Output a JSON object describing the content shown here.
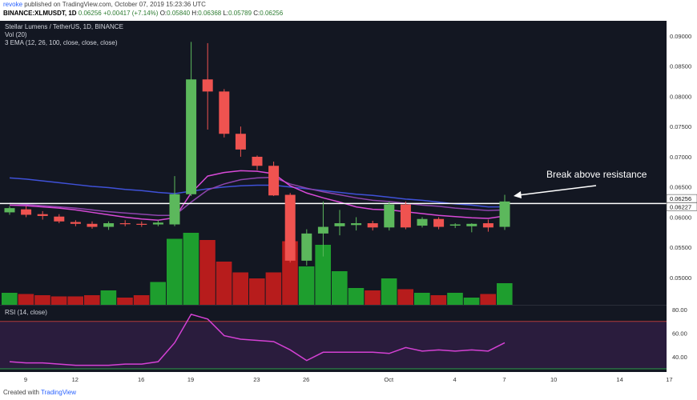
{
  "header": {
    "author": "revoke",
    "published_text": "published on TradingView.com, October 07, 2019 15:23:36 UTC",
    "symbol": "BINANCE:XLMUSDT, 1D",
    "last": "0.06256",
    "change": "+0.00417 (+7.14%)",
    "o_label": "O:",
    "o": "0.05840",
    "h_label": "H:",
    "h": "0.06368",
    "l_label": "L:",
    "l": "0.05789",
    "c_label": "C:",
    "c": "0.06256"
  },
  "legend": {
    "title": "Stellar Lumens / TetherUS, 1D, BINANCE",
    "vol": "Vol (20)",
    "ema": "3 EMA (12, 26, 100, close, close, close)",
    "rsi": "RSI (14, close)"
  },
  "annotation": "Break above resistance",
  "price_badges": [
    "0.06256",
    "0.06227"
  ],
  "footer": {
    "prefix": "Created with",
    "brand": "TradingView"
  },
  "colors": {
    "background": "#131722",
    "up": "#5cb85c",
    "down": "#ef5350",
    "vol_up": "#1e9e2e",
    "vol_down": "#b71c1c",
    "ema_fast": "#d84ad8",
    "ema_slow": "#8e44ad",
    "ema_long": "#3f51d8",
    "rsi": "#d441d4",
    "resistance": "#ffffff"
  },
  "chart_data": {
    "type": "candlestick",
    "price_axis": {
      "ticks": [
        "0.09000",
        "0.08500",
        "0.08000",
        "0.07500",
        "0.07000",
        "0.06500",
        "0.06000",
        "0.05500",
        "0.05000"
      ],
      "ylim": [
        0.0455,
        0.0925
      ]
    },
    "x_ticks": [
      "9",
      "12",
      "16",
      "19",
      "23",
      "26",
      "Oct",
      "4",
      "7",
      "10",
      "14",
      "17"
    ],
    "resistance": 0.06227,
    "candles": [
      {
        "o": 0.0608,
        "h": 0.0618,
        "l": 0.0604,
        "c": 0.0615
      },
      {
        "o": 0.0613,
        "h": 0.0618,
        "l": 0.06,
        "c": 0.0604
      },
      {
        "o": 0.0605,
        "h": 0.061,
        "l": 0.0596,
        "c": 0.0602
      },
      {
        "o": 0.0601,
        "h": 0.0605,
        "l": 0.059,
        "c": 0.0593
      },
      {
        "o": 0.0592,
        "h": 0.0595,
        "l": 0.0585,
        "c": 0.0589
      },
      {
        "o": 0.0589,
        "h": 0.0593,
        "l": 0.0581,
        "c": 0.0584
      },
      {
        "o": 0.0584,
        "h": 0.0593,
        "l": 0.0579,
        "c": 0.059
      },
      {
        "o": 0.059,
        "h": 0.0595,
        "l": 0.0585,
        "c": 0.0589
      },
      {
        "o": 0.0589,
        "h": 0.0593,
        "l": 0.0584,
        "c": 0.0588
      },
      {
        "o": 0.0588,
        "h": 0.0595,
        "l": 0.0585,
        "c": 0.0591
      },
      {
        "o": 0.0588,
        "h": 0.0668,
        "l": 0.0585,
        "c": 0.0638
      },
      {
        "o": 0.0638,
        "h": 0.089,
        "l": 0.0635,
        "c": 0.0828
      },
      {
        "o": 0.0828,
        "h": 0.0888,
        "l": 0.0745,
        "c": 0.0808
      },
      {
        "o": 0.0808,
        "h": 0.0812,
        "l": 0.0732,
        "c": 0.0738
      },
      {
        "o": 0.0738,
        "h": 0.075,
        "l": 0.07,
        "c": 0.0712
      },
      {
        "o": 0.07,
        "h": 0.0702,
        "l": 0.0678,
        "c": 0.0685
      },
      {
        "o": 0.0685,
        "h": 0.0692,
        "l": 0.0635,
        "c": 0.0636
      },
      {
        "o": 0.0637,
        "h": 0.064,
        "l": 0.0525,
        "c": 0.0528
      },
      {
        "o": 0.0528,
        "h": 0.058,
        "l": 0.052,
        "c": 0.0573
      },
      {
        "o": 0.0573,
        "h": 0.0626,
        "l": 0.0535,
        "c": 0.0584
      },
      {
        "o": 0.0585,
        "h": 0.0612,
        "l": 0.057,
        "c": 0.059
      },
      {
        "o": 0.0587,
        "h": 0.06,
        "l": 0.0578,
        "c": 0.059
      },
      {
        "o": 0.059,
        "h": 0.0594,
        "l": 0.0578,
        "c": 0.0583
      },
      {
        "o": 0.0583,
        "h": 0.0626,
        "l": 0.0578,
        "c": 0.0621
      },
      {
        "o": 0.0621,
        "h": 0.0626,
        "l": 0.058,
        "c": 0.0583
      },
      {
        "o": 0.0586,
        "h": 0.06,
        "l": 0.0583,
        "c": 0.0597
      },
      {
        "o": 0.0597,
        "h": 0.06,
        "l": 0.058,
        "c": 0.0584
      },
      {
        "o": 0.0586,
        "h": 0.059,
        "l": 0.0582,
        "c": 0.0588
      },
      {
        "o": 0.0585,
        "h": 0.059,
        "l": 0.0575,
        "c": 0.0589
      },
      {
        "o": 0.059,
        "h": 0.0596,
        "l": 0.0576,
        "c": 0.0583
      },
      {
        "o": 0.0584,
        "h": 0.0637,
        "l": 0.0579,
        "c": 0.0626
      }
    ],
    "volume": [
      1,
      0.9,
      0.8,
      0.7,
      0.7,
      0.8,
      1.2,
      0.6,
      0.8,
      1.9,
      5.5,
      6.0,
      5.4,
      3.6,
      2.7,
      2.2,
      2.7,
      5.3,
      3.2,
      5.0,
      2.8,
      1.4,
      1.2,
      2.2,
      1.3,
      1.0,
      0.8,
      1.0,
      0.6,
      0.9,
      1.8
    ],
    "ema_fast": [
      0.062,
      0.0619,
      0.0617,
      0.0615,
      0.0612,
      0.0608,
      0.0604,
      0.06,
      0.0597,
      0.0595,
      0.0599,
      0.064,
      0.0668,
      0.0674,
      0.0677,
      0.0676,
      0.0672,
      0.0652,
      0.064,
      0.0632,
      0.0625,
      0.0617,
      0.0613,
      0.0612,
      0.0609,
      0.0606,
      0.0603,
      0.0601,
      0.0599,
      0.0598,
      0.0602
    ],
    "ema_slow": [
      0.0623,
      0.0621,
      0.0619,
      0.0617,
      0.0615,
      0.0612,
      0.0609,
      0.0607,
      0.0605,
      0.0603,
      0.0603,
      0.0625,
      0.0645,
      0.0655,
      0.0662,
      0.0665,
      0.0666,
      0.0655,
      0.0648,
      0.0642,
      0.0637,
      0.0632,
      0.0628,
      0.0626,
      0.0623,
      0.062,
      0.0618,
      0.0615,
      0.0613,
      0.0611,
      0.0612
    ],
    "ema_long": [
      0.0665,
      0.0663,
      0.066,
      0.0657,
      0.0654,
      0.0651,
      0.0649,
      0.0646,
      0.0644,
      0.0641,
      0.0639,
      0.0643,
      0.0647,
      0.065,
      0.0652,
      0.0653,
      0.0653,
      0.065,
      0.0647,
      0.0644,
      0.0641,
      0.0638,
      0.0636,
      0.0633,
      0.063,
      0.0628,
      0.0625,
      0.0622,
      0.062,
      0.0617,
      0.0617
    ],
    "rsi_axis": {
      "ticks": [
        "80.00",
        "60.00",
        "40.00"
      ],
      "ylim": [
        28,
        82
      ],
      "upper": 70,
      "lower": 30
    },
    "rsi": [
      36,
      35,
      35,
      34,
      33,
      33,
      33,
      34,
      34,
      36,
      52,
      76,
      72,
      58,
      55,
      54,
      53,
      46,
      37,
      44,
      44,
      44,
      44,
      43,
      48,
      45,
      46,
      45,
      46,
      45,
      52
    ]
  }
}
